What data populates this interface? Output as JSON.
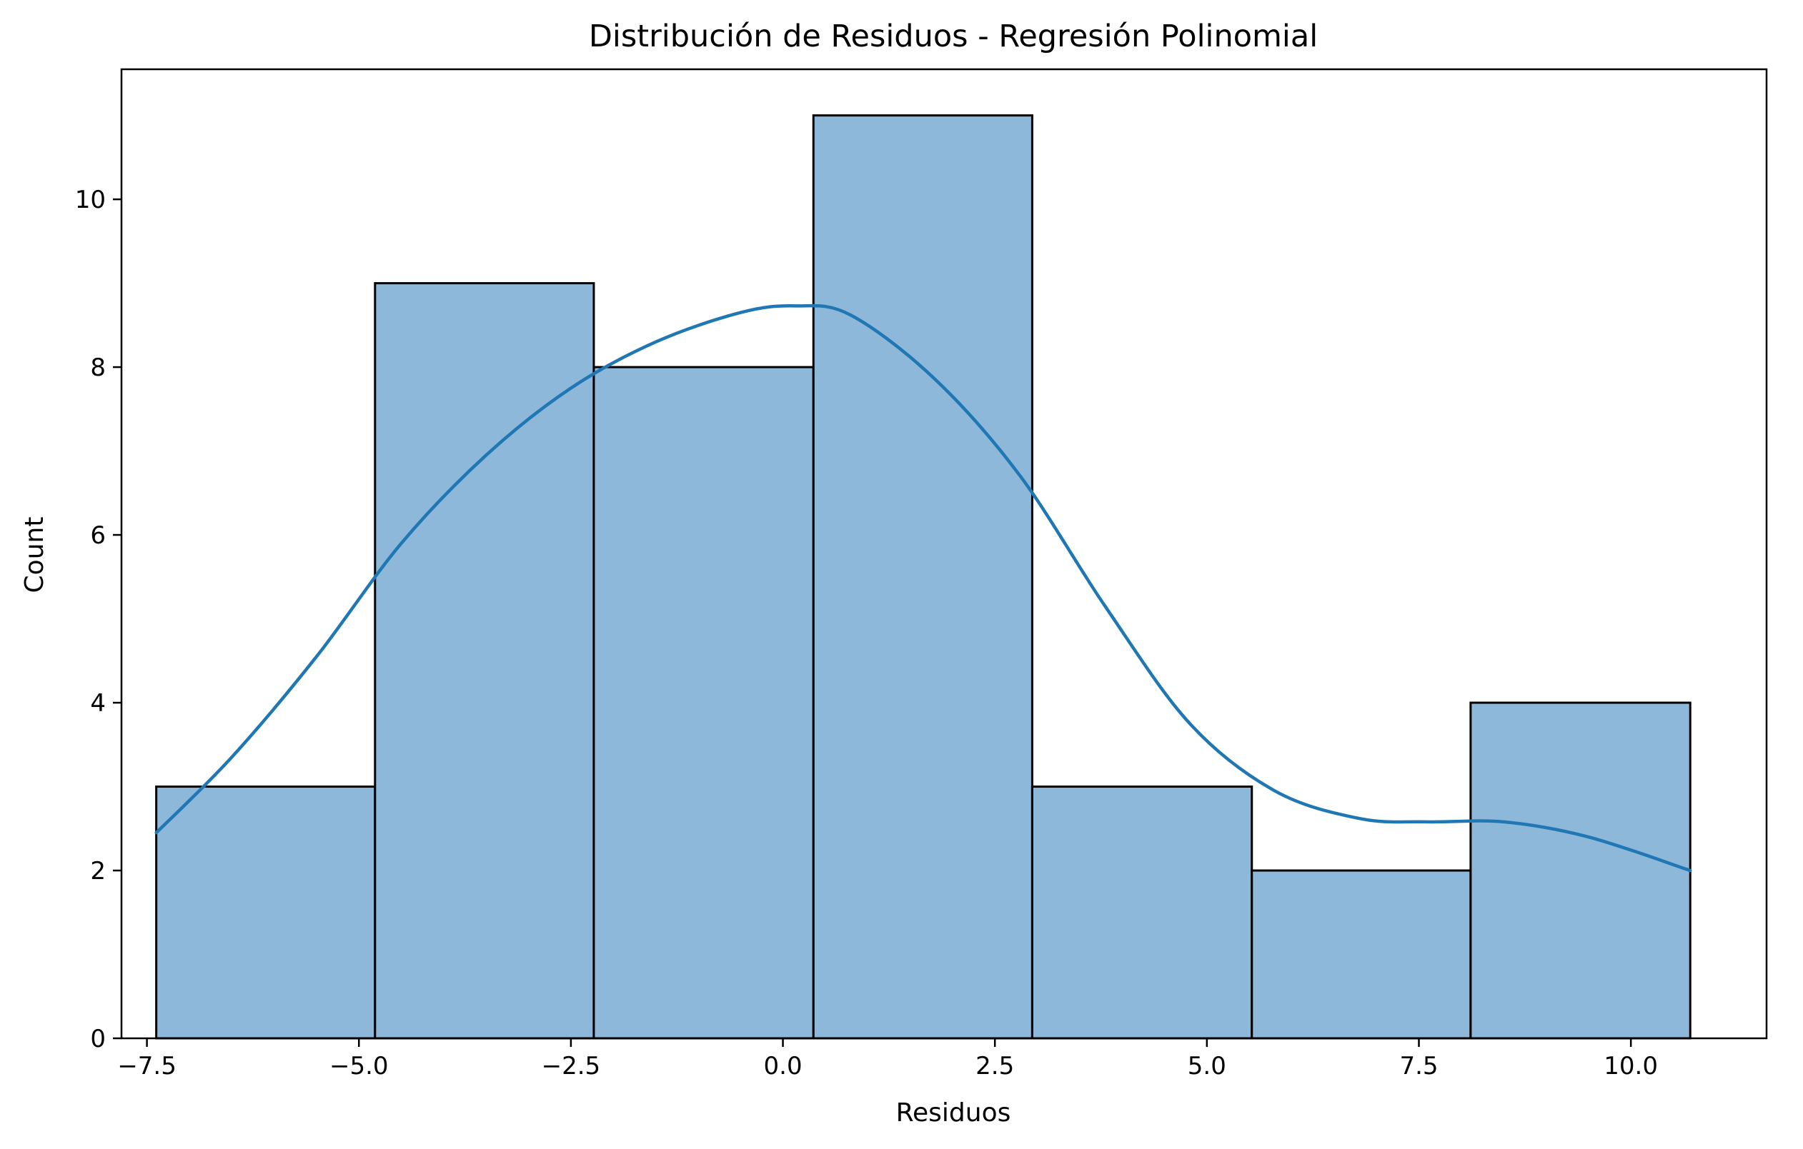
{
  "chart_data": {
    "type": "bar",
    "title": "Distribución de Residuos - Regresión Polinomial",
    "xlabel": "Residuos",
    "ylabel": "Count",
    "xlim": [
      -7.8,
      11.6
    ],
    "ylim": [
      0,
      11.55
    ],
    "grid": false,
    "x_ticks": [
      -7.5,
      -5.0,
      -2.5,
      0.0,
      2.5,
      5.0,
      7.5,
      10.0
    ],
    "x_tick_labels": [
      "−7.5",
      "−5.0",
      "−2.5",
      "0.0",
      "2.5",
      "5.0",
      "7.5",
      "10.0"
    ],
    "y_ticks": [
      0,
      2,
      4,
      6,
      8,
      10
    ],
    "y_tick_labels": [
      "0",
      "2",
      "4",
      "6",
      "8",
      "10"
    ],
    "bins": [
      {
        "x0": -7.39,
        "x1": -4.81,
        "count": 3
      },
      {
        "x0": -4.81,
        "x1": -2.23,
        "count": 9
      },
      {
        "x0": -2.23,
        "x1": 0.36,
        "count": 8
      },
      {
        "x0": 0.36,
        "x1": 2.94,
        "count": 11
      },
      {
        "x0": 2.94,
        "x1": 5.53,
        "count": 3
      },
      {
        "x0": 5.53,
        "x1": 8.11,
        "count": 2
      },
      {
        "x0": 8.11,
        "x1": 10.7,
        "count": 4
      }
    ],
    "kde": {
      "x": [
        -7.39,
        -6.5,
        -5.5,
        -4.5,
        -3.5,
        -2.5,
        -1.5,
        -0.5,
        0.15,
        0.8,
        1.8,
        2.8,
        3.8,
        4.8,
        5.8,
        6.8,
        7.6,
        8.5,
        9.5,
        10.7
      ],
      "y": [
        2.45,
        3.35,
        4.55,
        5.9,
        6.95,
        7.75,
        8.3,
        8.65,
        8.73,
        8.62,
        7.85,
        6.7,
        5.15,
        3.75,
        2.95,
        2.62,
        2.58,
        2.58,
        2.4,
        2.0
      ]
    },
    "colors": {
      "bar_fill": "#8db8d9",
      "bar_edge": "#000000",
      "kde_line": "#1f77b4"
    }
  }
}
